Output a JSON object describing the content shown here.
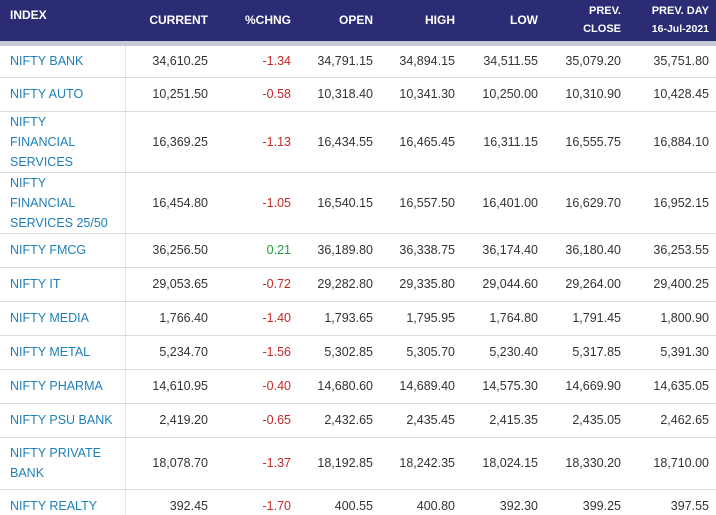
{
  "headers": {
    "index": "INDEX",
    "current": "CURRENT",
    "chng": "%CHNG",
    "open": "OPEN",
    "high": "HIGH",
    "low": "LOW",
    "prev_close_1": "PREV.",
    "prev_close_2": "CLOSE",
    "prev_day_1": "PREV. DAY",
    "prev_day_2": "16-Jul-2021"
  },
  "colors": {
    "header_bg": "#2b2c74",
    "link": "#1f7fb8",
    "negative": "#c62828",
    "positive": "#1e9e3a"
  },
  "rows": [
    {
      "name": "NIFTY BANK",
      "current": "34,610.25",
      "chng": "-1.34",
      "open": "34,791.15",
      "high": "34,894.15",
      "low": "34,511.55",
      "prev_close": "35,079.20",
      "prev_day": "35,751.80"
    },
    {
      "name": "NIFTY AUTO",
      "current": "10,251.50",
      "chng": "-0.58",
      "open": "10,318.40",
      "high": "10,341.30",
      "low": "10,250.00",
      "prev_close": "10,310.90",
      "prev_day": "10,428.45"
    },
    {
      "name": "NIFTY FINANCIAL SERVICES",
      "current": "16,369.25",
      "chng": "-1.13",
      "open": "16,434.55",
      "high": "16,465.45",
      "low": "16,311.15",
      "prev_close": "16,555.75",
      "prev_day": "16,884.10"
    },
    {
      "name": "NIFTY FINANCIAL SERVICES 25/50",
      "current": "16,454.80",
      "chng": "-1.05",
      "open": "16,540.15",
      "high": "16,557.50",
      "low": "16,401.00",
      "prev_close": "16,629.70",
      "prev_day": "16,952.15"
    },
    {
      "name": "NIFTY FMCG",
      "current": "36,256.50",
      "chng": "0.21",
      "open": "36,189.80",
      "high": "36,338.75",
      "low": "36,174.40",
      "prev_close": "36,180.40",
      "prev_day": "36,253.55"
    },
    {
      "name": "NIFTY IT",
      "current": "29,053.65",
      "chng": "-0.72",
      "open": "29,282.80",
      "high": "29,335.80",
      "low": "29,044.60",
      "prev_close": "29,264.00",
      "prev_day": "29,400.25"
    },
    {
      "name": "NIFTY MEDIA",
      "current": "1,766.40",
      "chng": "-1.40",
      "open": "1,793.65",
      "high": "1,795.95",
      "low": "1,764.80",
      "prev_close": "1,791.45",
      "prev_day": "1,800.90"
    },
    {
      "name": "NIFTY METAL",
      "current": "5,234.70",
      "chng": "-1.56",
      "open": "5,302.85",
      "high": "5,305.70",
      "low": "5,230.40",
      "prev_close": "5,317.85",
      "prev_day": "5,391.30"
    },
    {
      "name": "NIFTY PHARMA",
      "current": "14,610.95",
      "chng": "-0.40",
      "open": "14,680.60",
      "high": "14,689.40",
      "low": "14,575.30",
      "prev_close": "14,669.90",
      "prev_day": "14,635.05"
    },
    {
      "name": "NIFTY PSU BANK",
      "current": "2,419.20",
      "chng": "-0.65",
      "open": "2,432.65",
      "high": "2,435.45",
      "low": "2,415.35",
      "prev_close": "2,435.05",
      "prev_day": "2,462.65"
    },
    {
      "name": "NIFTY PRIVATE BANK",
      "current": "18,078.70",
      "chng": "-1.37",
      "open": "18,192.85",
      "high": "18,242.35",
      "low": "18,024.15",
      "prev_close": "18,330.20",
      "prev_day": "18,710.00"
    },
    {
      "name": "NIFTY REALTY",
      "current": "392.45",
      "chng": "-1.70",
      "open": "400.55",
      "high": "400.80",
      "low": "392.30",
      "prev_close": "399.25",
      "prev_day": "397.55"
    }
  ]
}
